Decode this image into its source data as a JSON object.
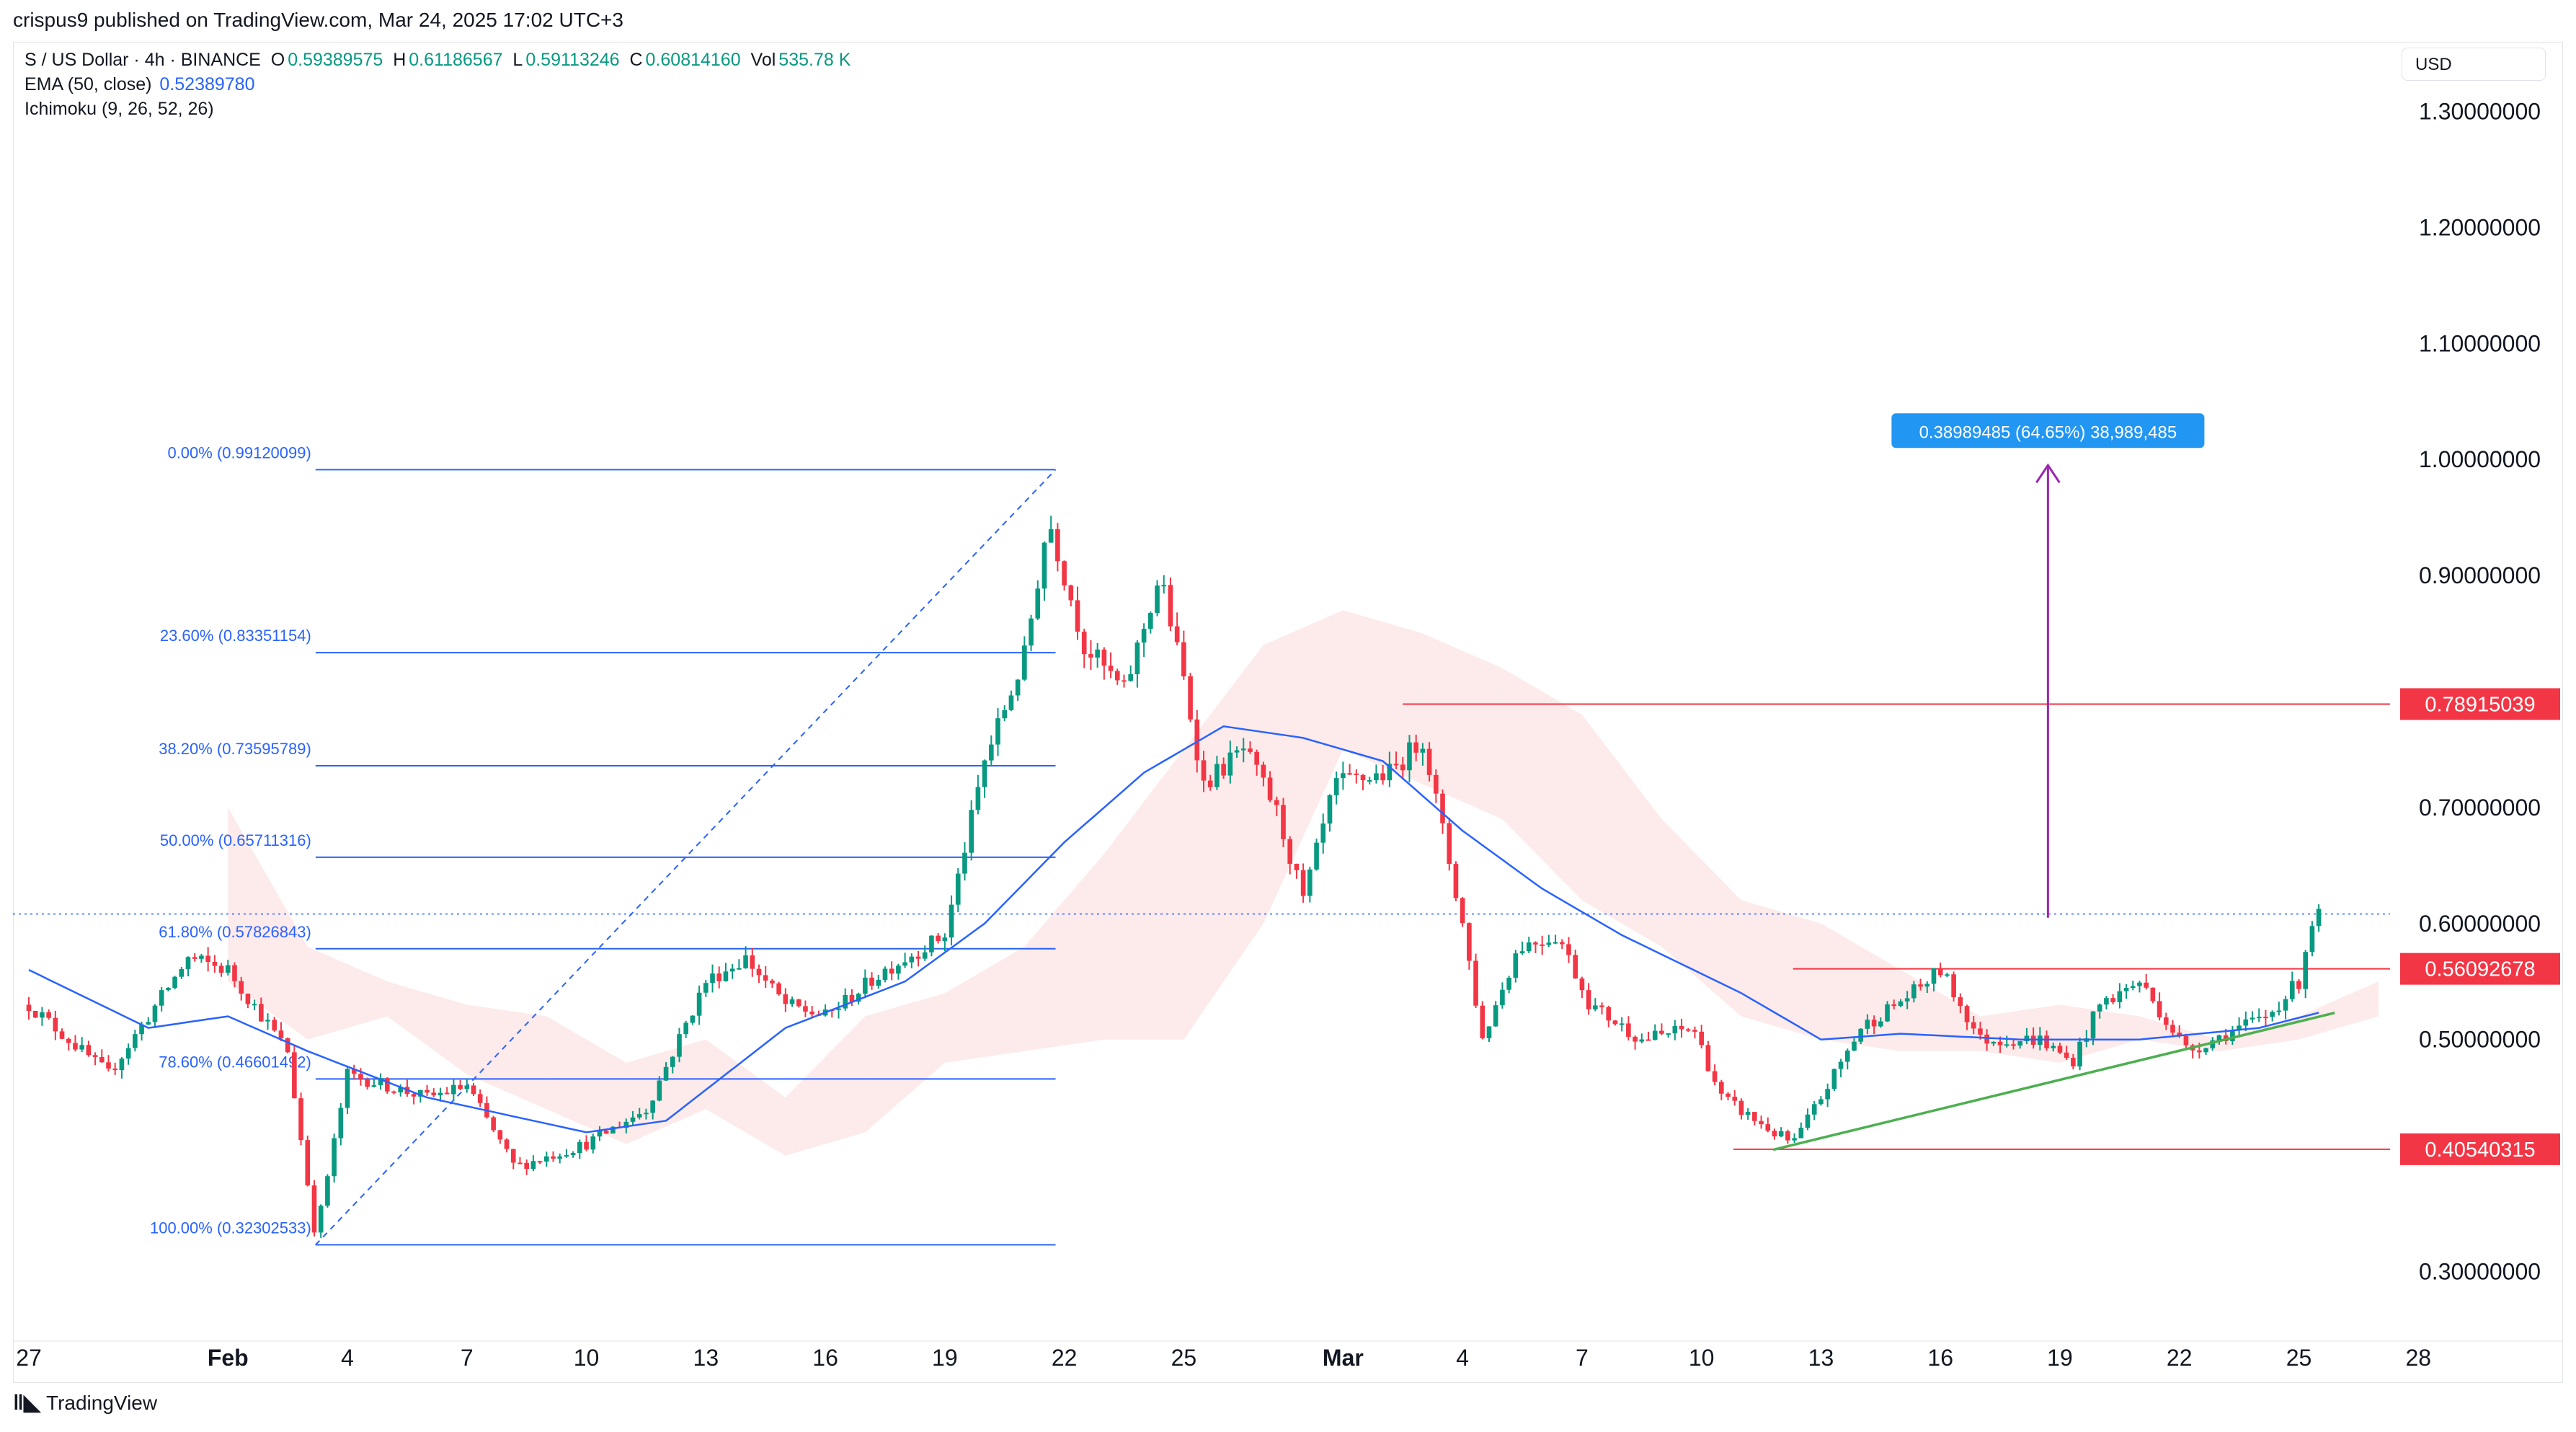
{
  "header": {
    "published": "crispus9 published on TradingView.com, Mar 24, 2025 17:02 UTC+3"
  },
  "legend": {
    "symbol": "S / US Dollar · 4h · BINANCE",
    "o_label": "O",
    "o": "0.59389575",
    "h_label": "H",
    "h": "0.61186567",
    "l_label": "L",
    "l": "0.59113246",
    "c_label": "C",
    "c": "0.60814160",
    "vol_label": "Vol",
    "vol": "535.78 K",
    "ema_label": "EMA (50, close)",
    "ema": "0.52389780",
    "ichimoku_label": "Ichimoku (9, 26, 52, 26)"
  },
  "currency": "USD",
  "footer": {
    "logo_text": "TradingView"
  },
  "colors": {
    "up": "#089981",
    "down": "#f23645",
    "ema": "#2962ff",
    "fib": "#2962ff",
    "level_line": "#f23645",
    "trendline": "#4caf50",
    "measure": "#9c27b0",
    "cloud_bull": "#e8f5e9",
    "cloud_bear": "#fde8e8",
    "measure_label_bg": "#2196f3"
  },
  "chart_data": {
    "type": "candlestick",
    "title": "S / US Dollar · 4h · BINANCE",
    "y_axis": {
      "ticks": [
        0.3,
        0.4,
        0.5,
        0.6,
        0.7,
        0.8,
        0.9,
        1.0,
        1.1,
        1.2,
        1.3
      ],
      "tick_labels": [
        "0.30000000",
        "",
        "0.50000000",
        "0.60000000",
        "0.70000000",
        "",
        "0.90000000",
        "1.00000000",
        "1.10000000",
        "1.20000000",
        "1.30000000"
      ],
      "range": [
        0.24,
        1.36
      ]
    },
    "x_axis": {
      "range_days": [
        0,
        59
      ],
      "ticks": [
        {
          "day": 0,
          "label": "27"
        },
        {
          "day": 5,
          "label": "Feb",
          "bold": true
        },
        {
          "day": 8,
          "label": "4"
        },
        {
          "day": 11,
          "label": "7"
        },
        {
          "day": 14,
          "label": "10"
        },
        {
          "day": 17,
          "label": "13"
        },
        {
          "day": 20,
          "label": "16"
        },
        {
          "day": 23,
          "label": "19"
        },
        {
          "day": 26,
          "label": "22"
        },
        {
          "day": 29,
          "label": "25"
        },
        {
          "day": 33,
          "label": "Mar",
          "bold": true
        },
        {
          "day": 36,
          "label": "4"
        },
        {
          "day": 39,
          "label": "7"
        },
        {
          "day": 42,
          "label": "10"
        },
        {
          "day": 45,
          "label": "13"
        },
        {
          "day": 48,
          "label": "16"
        },
        {
          "day": 51,
          "label": "19"
        },
        {
          "day": 54,
          "label": "22"
        },
        {
          "day": 57,
          "label": "25"
        },
        {
          "day": 60,
          "label": "28"
        }
      ]
    },
    "price_anchors": [
      [
        0,
        0.53
      ],
      [
        2,
        0.47
      ],
      [
        4,
        0.57
      ],
      [
        5,
        0.56
      ],
      [
        6.5,
        0.49
      ],
      [
        7.2,
        0.33
      ],
      [
        8,
        0.47
      ],
      [
        10,
        0.45
      ],
      [
        11,
        0.46
      ],
      [
        12.2,
        0.39
      ],
      [
        14,
        0.41
      ],
      [
        15.5,
        0.44
      ],
      [
        17,
        0.55
      ],
      [
        18,
        0.57
      ],
      [
        19,
        0.53
      ],
      [
        20,
        0.52
      ],
      [
        21.5,
        0.56
      ],
      [
        23,
        0.59
      ],
      [
        24,
        0.74
      ],
      [
        25,
        0.83
      ],
      [
        25.6,
        0.95
      ],
      [
        26.5,
        0.84
      ],
      [
        27.5,
        0.8
      ],
      [
        28.4,
        0.9
      ],
      [
        29,
        0.81
      ],
      [
        29.5,
        0.72
      ],
      [
        30.5,
        0.75
      ],
      [
        31.3,
        0.7
      ],
      [
        32,
        0.62
      ],
      [
        32.8,
        0.72
      ],
      [
        34.2,
        0.73
      ],
      [
        35,
        0.76
      ],
      [
        36,
        0.6
      ],
      [
        36.5,
        0.5
      ],
      [
        37.4,
        0.58
      ],
      [
        38.4,
        0.59
      ],
      [
        39.2,
        0.53
      ],
      [
        40.5,
        0.5
      ],
      [
        41.8,
        0.51
      ],
      [
        42.5,
        0.45
      ],
      [
        43.8,
        0.42
      ],
      [
        44.3,
        0.41
      ],
      [
        45,
        0.45
      ],
      [
        46,
        0.51
      ],
      [
        47.3,
        0.54
      ],
      [
        48,
        0.56
      ],
      [
        49,
        0.5
      ],
      [
        50.5,
        0.5
      ],
      [
        51.3,
        0.48
      ],
      [
        52,
        0.53
      ],
      [
        53,
        0.55
      ],
      [
        54.2,
        0.49
      ],
      [
        55.5,
        0.51
      ],
      [
        56.2,
        0.52
      ],
      [
        57,
        0.55
      ],
      [
        57.3,
        0.6
      ],
      [
        57.6,
        0.61
      ]
    ],
    "ema_50": [
      [
        0,
        0.56
      ],
      [
        3,
        0.51
      ],
      [
        5,
        0.52
      ],
      [
        7,
        0.49
      ],
      [
        10,
        0.45
      ],
      [
        14,
        0.42
      ],
      [
        16,
        0.43
      ],
      [
        19,
        0.51
      ],
      [
        22,
        0.55
      ],
      [
        24,
        0.6
      ],
      [
        26,
        0.67
      ],
      [
        28,
        0.73
      ],
      [
        30,
        0.77
      ],
      [
        32,
        0.76
      ],
      [
        34,
        0.74
      ],
      [
        36,
        0.68
      ],
      [
        38,
        0.63
      ],
      [
        40,
        0.59
      ],
      [
        43,
        0.54
      ],
      [
        45,
        0.5
      ],
      [
        47,
        0.505
      ],
      [
        50,
        0.5
      ],
      [
        53,
        0.5
      ],
      [
        56,
        0.51
      ],
      [
        57.6,
        0.524
      ]
    ],
    "ichimoku_cloud": [
      [
        5,
        0.7,
        0.55
      ],
      [
        7,
        0.58,
        0.5
      ],
      [
        9,
        0.55,
        0.52
      ],
      [
        11,
        0.53,
        0.47
      ],
      [
        13,
        0.52,
        0.44
      ],
      [
        15,
        0.48,
        0.41
      ],
      [
        17,
        0.5,
        0.44
      ],
      [
        19,
        0.45,
        0.4
      ],
      [
        21,
        0.52,
        0.42
      ],
      [
        23,
        0.54,
        0.48
      ],
      [
        25,
        0.58,
        0.49
      ],
      [
        27,
        0.66,
        0.5
      ],
      [
        29,
        0.75,
        0.5
      ],
      [
        31,
        0.84,
        0.6
      ],
      [
        33,
        0.87,
        0.75
      ],
      [
        35,
        0.85,
        0.72
      ],
      [
        37,
        0.82,
        0.69
      ],
      [
        39,
        0.78,
        0.62
      ],
      [
        41,
        0.69,
        0.58
      ],
      [
        43,
        0.62,
        0.52
      ],
      [
        45,
        0.6,
        0.5
      ],
      [
        47,
        0.56,
        0.49
      ],
      [
        49,
        0.52,
        0.49
      ],
      [
        51,
        0.53,
        0.48
      ],
      [
        53,
        0.52,
        0.5
      ],
      [
        55,
        0.5,
        0.49
      ],
      [
        57,
        0.52,
        0.5
      ],
      [
        59,
        0.55,
        0.52
      ]
    ],
    "fibonacci": {
      "start_day": 7.2,
      "end_day": 25.6,
      "low": 0.32302533,
      "high": 0.99120099,
      "levels": [
        {
          "value": 0.99120099,
          "label": "0.00% (0.99120099)"
        },
        {
          "value": 0.83351154,
          "label": "23.60% (0.83351154)"
        },
        {
          "value": 0.73595789,
          "label": "38.20% (0.73595789)"
        },
        {
          "value": 0.65711316,
          "label": "50.00% (0.65711316)"
        },
        {
          "value": 0.57826843,
          "label": "61.80% (0.57826843)"
        },
        {
          "value": 0.46601492,
          "label": "78.60% (0.46601492)"
        },
        {
          "value": 0.32302533,
          "label": "100.00% (0.32302533)"
        }
      ]
    },
    "horizontal_levels": [
      {
        "value": 0.78915039,
        "label": "0.78915039",
        "from_day": 34.5
      },
      {
        "value": 0.56092678,
        "label": "0.56092678",
        "from_day": 44.3
      },
      {
        "value": 0.40540315,
        "label": "0.40540315",
        "from_day": 42.8
      }
    ],
    "current_price": 0.6081416,
    "trendline": {
      "from": [
        43.8,
        0.405
      ],
      "to": [
        57.9,
        0.523
      ]
    },
    "measurement": {
      "day": 50.7,
      "from": 0.605,
      "to": 0.995,
      "label": "0.38989485 (64.65%) 38,989,485"
    }
  }
}
